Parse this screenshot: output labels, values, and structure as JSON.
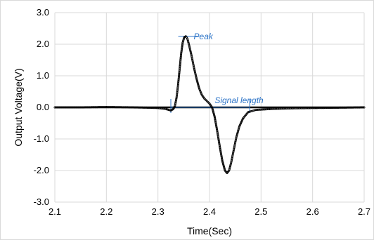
{
  "chart_data": {
    "type": "scatter",
    "title": "",
    "xlabel": "Time(Sec)",
    "ylabel": "Output Voltage(V)",
    "xlim": [
      2.1,
      2.7
    ],
    "ylim": [
      -3.0,
      3.0
    ],
    "x_ticks": [
      "2.1",
      "2.2",
      "2.3",
      "2.4",
      "2.5",
      "2.6",
      "2.7"
    ],
    "y_ticks": [
      "3.0",
      "2.0",
      "1.0",
      "0.0",
      "-1.0",
      "-2.0",
      "-3.0"
    ],
    "grid": true,
    "legend": "none",
    "colors": {
      "series": "#000000",
      "annotation": "#2e75c8",
      "grid": "#d9d9d9"
    },
    "series": [
      {
        "marker": "circle",
        "points": [
          [
            2.1,
            0.0
          ],
          [
            2.15,
            0.0
          ],
          [
            2.2,
            0.01
          ],
          [
            2.25,
            0.0
          ],
          [
            2.28,
            -0.01
          ],
          [
            2.3,
            -0.02
          ],
          [
            2.315,
            -0.05
          ],
          [
            2.325,
            -0.1
          ],
          [
            2.33,
            -0.05
          ],
          [
            2.333,
            0.05
          ],
          [
            2.336,
            0.3
          ],
          [
            2.339,
            0.7
          ],
          [
            2.342,
            1.2
          ],
          [
            2.345,
            1.7
          ],
          [
            2.348,
            2.05
          ],
          [
            2.351,
            2.22
          ],
          [
            2.354,
            2.25
          ],
          [
            2.357,
            2.18
          ],
          [
            2.36,
            2.0
          ],
          [
            2.365,
            1.65
          ],
          [
            2.37,
            1.25
          ],
          [
            2.375,
            0.9
          ],
          [
            2.38,
            0.6
          ],
          [
            2.385,
            0.4
          ],
          [
            2.39,
            0.28
          ],
          [
            2.395,
            0.2
          ],
          [
            2.4,
            0.12
          ],
          [
            2.405,
            0.0
          ],
          [
            2.41,
            -0.3
          ],
          [
            2.415,
            -0.75
          ],
          [
            2.42,
            -1.25
          ],
          [
            2.425,
            -1.7
          ],
          [
            2.43,
            -2.0
          ],
          [
            2.434,
            -2.08
          ],
          [
            2.438,
            -2.0
          ],
          [
            2.442,
            -1.75
          ],
          [
            2.447,
            -1.35
          ],
          [
            2.452,
            -0.95
          ],
          [
            2.458,
            -0.6
          ],
          [
            2.465,
            -0.35
          ],
          [
            2.475,
            -0.15
          ],
          [
            2.49,
            -0.08
          ],
          [
            2.52,
            -0.05
          ],
          [
            2.56,
            -0.03
          ],
          [
            2.6,
            -0.02
          ],
          [
            2.65,
            -0.01
          ],
          [
            2.7,
            0.0
          ]
        ]
      }
    ],
    "annotations": [
      {
        "label": "Peak",
        "x": 2.353,
        "y": 2.25
      },
      {
        "label": "Signal length",
        "x_start": 2.325,
        "x_end": 2.478,
        "y": 0.0
      }
    ]
  }
}
